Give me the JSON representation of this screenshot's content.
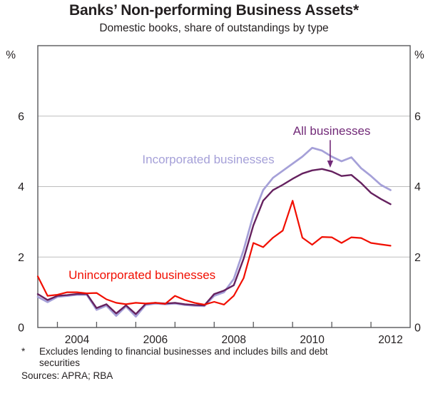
{
  "title": "Banks’ Non-performing Business Assets*",
  "subtitle": "Domestic books, share of outstandings by type",
  "footnote": {
    "marker": "*",
    "text": "Excludes lending to financial businesses and includes bills and debt securities"
  },
  "sources": "Sources: APRA; RBA",
  "colors": {
    "frame": "#58595b",
    "grid": "#bdbdbd",
    "text": "#231f20",
    "red": "#f10e00",
    "dark_purple": "#65215f",
    "dark_purple_text": "#722a78",
    "light_purple": "#a5a0d8"
  },
  "chart_data": {
    "type": "line",
    "title": "Banks’ Non-performing Business Assets*",
    "subtitle": "Domestic books, share of outstandings by type",
    "ylabel_unit_left": "%",
    "ylabel_unit_right": "%",
    "ylim": [
      0,
      8
    ],
    "xlim": [
      2003.5,
      2013.0
    ],
    "grid": "horizontal",
    "gridlines": [
      2,
      4,
      6
    ],
    "y_tick_labels": [
      0,
      2,
      4,
      6
    ],
    "x_ticks": [
      2004,
      2005,
      2006,
      2007,
      2008,
      2009,
      2010,
      2011,
      2012
    ],
    "x_year_labels": [
      {
        "label": "2004",
        "x": 2004.5
      },
      {
        "label": "2006",
        "x": 2006.5
      },
      {
        "label": "2008",
        "x": 2008.5
      },
      {
        "label": "2010",
        "x": 2010.5
      },
      {
        "label": "2012",
        "x": 2012.5
      }
    ],
    "x": [
      2003.5,
      2003.75,
      2004.0,
      2004.25,
      2004.5,
      2004.75,
      2005.0,
      2005.25,
      2005.5,
      2005.75,
      2006.0,
      2006.25,
      2006.5,
      2006.75,
      2007.0,
      2007.25,
      2007.5,
      2007.75,
      2008.0,
      2008.25,
      2008.5,
      2008.75,
      2009.0,
      2009.25,
      2009.5,
      2009.75,
      2010.0,
      2010.25,
      2010.5,
      2010.75,
      2011.0,
      2011.25,
      2011.5,
      2011.75,
      2012.0,
      2012.25,
      2012.5
    ],
    "series": [
      {
        "name": "Incorporated businesses",
        "color_key": "light_purple",
        "stroke_width": 2.7,
        "values": [
          0.87,
          0.72,
          0.87,
          0.9,
          0.93,
          0.93,
          0.5,
          0.62,
          0.33,
          0.6,
          0.31,
          0.64,
          0.68,
          0.66,
          0.68,
          0.64,
          0.62,
          0.61,
          0.9,
          1.0,
          1.38,
          2.2,
          3.2,
          3.9,
          4.25,
          4.45,
          4.65,
          4.85,
          5.1,
          5.02,
          4.85,
          4.72,
          4.83,
          4.52,
          4.3,
          4.05,
          3.9
        ]
      },
      {
        "name": "All businesses",
        "color_key": "dark_purple",
        "stroke_width": 2.4,
        "values": [
          0.95,
          0.78,
          0.9,
          0.92,
          0.95,
          0.95,
          0.55,
          0.66,
          0.4,
          0.63,
          0.38,
          0.67,
          0.7,
          0.68,
          0.7,
          0.66,
          0.64,
          0.63,
          0.95,
          1.05,
          1.2,
          1.95,
          2.9,
          3.6,
          3.9,
          4.05,
          4.22,
          4.37,
          4.46,
          4.5,
          4.43,
          4.3,
          4.33,
          4.1,
          3.82,
          3.65,
          3.5
        ]
      },
      {
        "name": "Unincorporated businesses",
        "color_key": "red",
        "stroke_width": 2.2,
        "values": [
          1.45,
          0.9,
          0.93,
          1.0,
          1.0,
          0.97,
          0.98,
          0.8,
          0.7,
          0.66,
          0.7,
          0.68,
          0.7,
          0.67,
          0.9,
          0.78,
          0.7,
          0.65,
          0.73,
          0.65,
          0.9,
          1.4,
          2.4,
          2.28,
          2.55,
          2.75,
          3.6,
          2.55,
          2.35,
          2.57,
          2.56,
          2.4,
          2.56,
          2.54,
          2.4,
          2.36,
          2.32
        ]
      }
    ],
    "annotations": [
      {
        "text": "Incorporated businesses",
        "x": 2007.85,
        "y": 4.78,
        "color_key": "light_purple",
        "font_size": 17
      },
      {
        "text": "All businesses",
        "x": 2011.0,
        "y": 5.59,
        "color_key": "dark_purple_text",
        "font_size": 17,
        "arrow": {
          "x": 2010.96,
          "y_from": 5.32,
          "y_to": 4.72
        }
      },
      {
        "text": "Unincorporated businesses",
        "x": 2006.16,
        "y": 1.5,
        "color_key": "red",
        "font_size": 17
      }
    ],
    "legend_position": "inline-labels"
  }
}
